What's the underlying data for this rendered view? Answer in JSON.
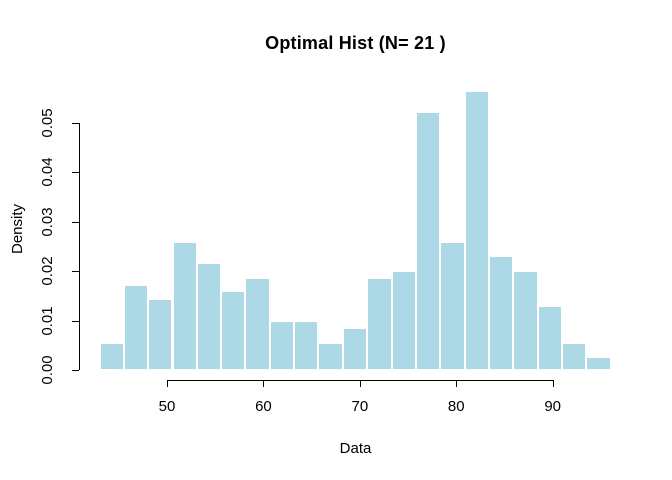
{
  "chart_data": {
    "type": "bar",
    "chart_kind": "histogram",
    "title": "Optimal Hist (N= 21 )",
    "xlabel": "Data",
    "ylabel": "Density",
    "n_bins": 21,
    "breaks": [
      43,
      45.52,
      48.05,
      50.57,
      53.1,
      55.62,
      58.14,
      60.67,
      63.19,
      65.71,
      68.24,
      70.76,
      73.29,
      75.81,
      78.33,
      80.86,
      83.38,
      85.9,
      88.43,
      90.95,
      93.48,
      96
    ],
    "densities": [
      0.0055,
      0.0172,
      0.0143,
      0.026,
      0.0216,
      0.0159,
      0.0187,
      0.01,
      0.01,
      0.0055,
      0.0085,
      0.0187,
      0.0201,
      0.0522,
      0.026,
      0.0565,
      0.0231,
      0.0201,
      0.013,
      0.0055,
      0.0027
    ],
    "x_ticks": [
      50,
      60,
      70,
      80,
      90
    ],
    "x_tick_labels": [
      "50",
      "60",
      "70",
      "80",
      "90"
    ],
    "y_ticks": [
      0,
      0.01,
      0.02,
      0.03,
      0.04,
      0.05
    ],
    "y_tick_labels": [
      "0.00",
      "0.01",
      "0.02",
      "0.03",
      "0.04",
      "0.05"
    ],
    "xlim": [
      40.9,
      98.1
    ],
    "ylim": [
      0,
      0.0588
    ],
    "grid": false,
    "legend": "none",
    "bar_color": "#ADD8E6",
    "bar_border_color": "#FFFFFF",
    "axis_color": "#000000",
    "text_color": "#000000",
    "background_color": "#FFFFFF"
  }
}
